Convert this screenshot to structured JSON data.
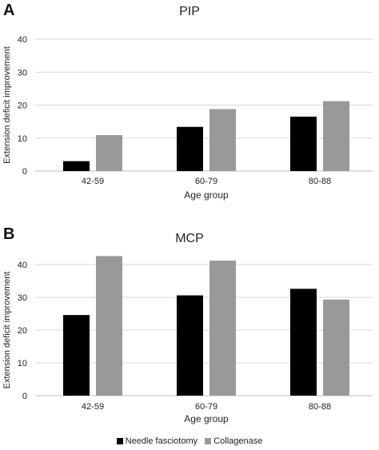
{
  "panels": [
    {
      "letter": "A"
    },
    {
      "letter": "B"
    }
  ],
  "colors": {
    "needle": "#000000",
    "collagenase": "#999999",
    "grid": "#d9d9d9",
    "axis": "#bfbfbf",
    "text": "#222222"
  },
  "legend": {
    "items": [
      {
        "label": "Needle fasciotomy"
      },
      {
        "label": "Collagenase"
      }
    ],
    "placement": "bottom-center"
  },
  "chart_data": [
    {
      "type": "bar",
      "title": "PIP",
      "xlabel": "Age group",
      "ylabel": "Extension deficit improvement",
      "categories": [
        "42-59",
        "60-79",
        "80-88"
      ],
      "series": [
        {
          "name": "Needle fasciotomy",
          "values": [
            3,
            13.4,
            16.5
          ]
        },
        {
          "name": "Collagenase",
          "values": [
            10.9,
            18.8,
            21.2
          ]
        }
      ],
      "ylim": [
        0,
        40
      ],
      "yticks": [
        0,
        10,
        20,
        30,
        40
      ],
      "grid": true
    },
    {
      "type": "bar",
      "title": "MCP",
      "xlabel": "Age group",
      "ylabel": "Extension deficit improvement",
      "categories": [
        "42-59",
        "60-79",
        "80-88"
      ],
      "series": [
        {
          "name": "Needle fasciotomy",
          "values": [
            24.6,
            30.6,
            32.6
          ]
        },
        {
          "name": "Collagenase",
          "values": [
            42.6,
            41.2,
            29.3
          ]
        }
      ],
      "ylim": [
        0,
        40
      ],
      "yticks": [
        0,
        10,
        20,
        30,
        40
      ],
      "grid": true
    }
  ]
}
